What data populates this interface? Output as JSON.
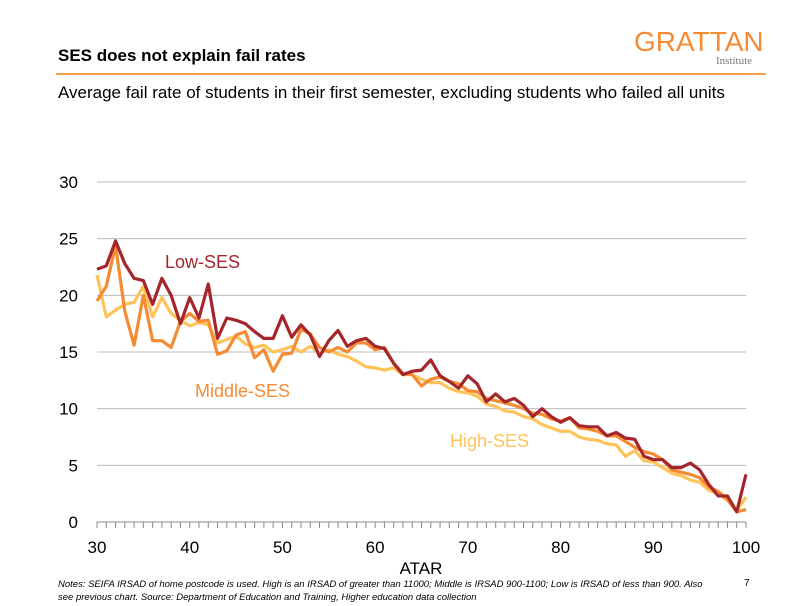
{
  "header": {
    "title": "SES does not explain fail rates",
    "logo": "GRATTAN",
    "logo_sub": "Institute",
    "subtitle": "Average  fail rate of students in their first semester, excluding students who failed all units"
  },
  "footer": {
    "notes": "Notes: SEIFA IRSAD of home postcode is used. High is an IRSAD of greater than 11000; Middle is IRSAD 900-1100; Low is IRSAD of less than 900. Also see previous chart. Source: Department of Education and Training, Higher education data collection",
    "page": "7"
  },
  "chart_data": {
    "type": "line",
    "title": "",
    "xlabel": "ATAR",
    "ylabel": "",
    "xlim": [
      30,
      100
    ],
    "ylim": [
      0,
      30
    ],
    "xticks": [
      30,
      40,
      50,
      60,
      70,
      80,
      90,
      100
    ],
    "yticks": [
      0,
      5,
      10,
      15,
      20,
      25,
      30
    ],
    "grid": true,
    "legend": "inline labels",
    "x_start": 30,
    "series": [
      {
        "name": "Low-SES",
        "color": "#a4262c",
        "values": [
          22.3,
          22.6,
          24.8,
          22.8,
          21.5,
          21.3,
          19.2,
          21.5,
          20,
          17.5,
          19.8,
          18,
          21,
          16.2,
          18,
          17.8,
          17.5,
          16.8,
          16.2,
          16.2,
          18.2,
          16.3,
          17.4,
          16.5,
          14.6,
          16,
          16.9,
          15.5,
          16,
          16.2,
          15.5,
          15.3,
          14,
          13,
          13.3,
          13.4,
          14.3,
          12.9,
          12.4,
          11.8,
          12.9,
          12.2,
          10.6,
          11.3,
          10.6,
          10.9,
          10.3,
          9.3,
          10,
          9.3,
          8.8,
          9.2,
          8.5,
          8.4,
          8.4,
          7.6,
          7.9,
          7.4,
          7.3,
          5.8,
          5.5,
          5.5,
          4.8,
          4.8,
          5.2,
          4.6,
          3.3,
          2.3,
          2.3,
          0.9,
          4.2
        ]
      },
      {
        "name": "Middle-SES",
        "color": "#f68b33",
        "values": [
          19.5,
          20.8,
          24.4,
          18.6,
          15.6,
          20,
          16,
          16,
          15.4,
          17.7,
          18.4,
          17.7,
          17.8,
          14.8,
          15.1,
          16.5,
          16.8,
          14.5,
          15.2,
          13.3,
          14.8,
          14.9,
          17,
          16.6,
          15.4,
          15,
          15.4,
          15,
          15.8,
          15.8,
          15.2,
          15.4,
          14,
          13.1,
          13,
          12,
          12.6,
          12.8,
          12.4,
          12.2,
          11.6,
          11.5,
          10.9,
          10.7,
          10.5,
          10.3,
          10,
          9.6,
          9.5,
          9.1,
          8.9,
          9.2,
          8.3,
          8.2,
          8,
          7.6,
          7.6,
          7.1,
          6.6,
          6.2,
          6,
          5.5,
          4.6,
          4.4,
          4.2,
          3.9,
          3.1,
          2.7,
          2,
          0.9,
          1.1
        ]
      },
      {
        "name": "High-SES",
        "color": "#ffc35a",
        "values": [
          21.8,
          18.1,
          18.7,
          19.2,
          19.4,
          20.8,
          18.1,
          19.8,
          18.4,
          17.8,
          17.3,
          17.6,
          17.4,
          15.8,
          16.1,
          16.4,
          15.7,
          15.4,
          15.6,
          15,
          15.2,
          15.5,
          15,
          15.5,
          14.9,
          15.2,
          14.8,
          14.6,
          14.2,
          13.7,
          13.6,
          13.4,
          13.6,
          13,
          13,
          12.6,
          12.3,
          12.3,
          11.8,
          11.5,
          11.4,
          11.1,
          10.4,
          10.2,
          9.8,
          9.7,
          9.3,
          9.1,
          8.6,
          8.3,
          8,
          8,
          7.5,
          7.3,
          7.2,
          6.9,
          6.8,
          5.8,
          6.3,
          5.4,
          5.3,
          4.8,
          4.3,
          4.1,
          3.7,
          3.5,
          2.8,
          2.5,
          1.9,
          1,
          2.2
        ]
      }
    ]
  }
}
